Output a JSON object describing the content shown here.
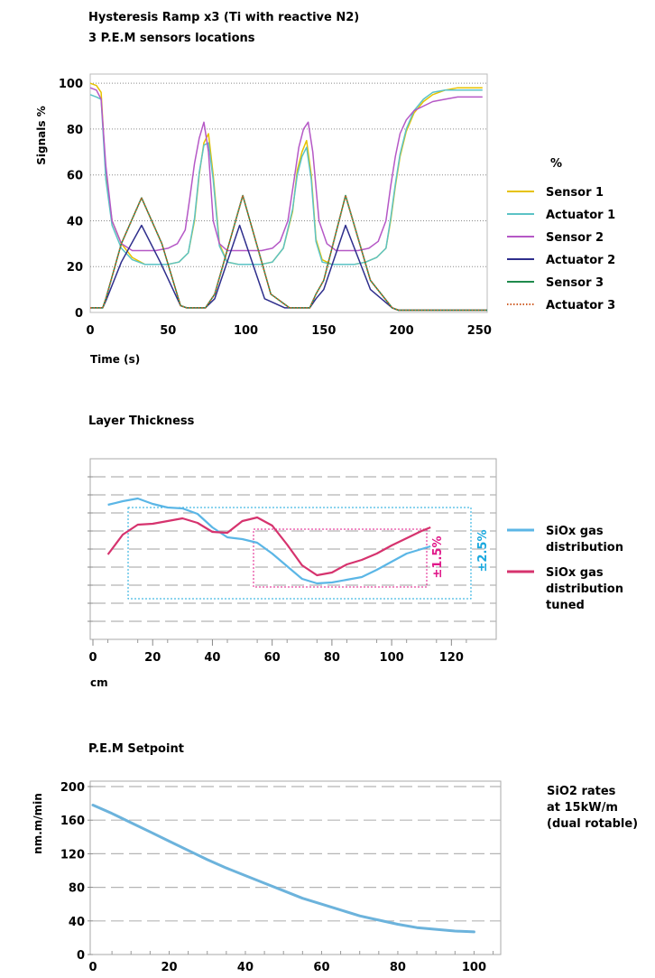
{
  "colors": {
    "sensor1": "#e6c200",
    "actuator1": "#5bc3c6",
    "sensor2": "#b558c6",
    "actuator2": "#2e2e8c",
    "sensor3": "#1f8a4c",
    "actuator3": "#d0622b",
    "siox": "#5bb6e6",
    "siox_tuned": "#d6336e",
    "dim_pink": "#e0198a",
    "dim_cyan": "#1aa8de",
    "grid": "#9a9a9a",
    "frame": "#aaaaaa",
    "setpoint": "#6cb3dc"
  },
  "chart_data": [
    {
      "type": "line",
      "title": "Hysteresis Ramp x3 (Ti with reactive N2)",
      "subtitle": "3 P.E.M sensors locations",
      "xlabel": "Time (s)",
      "ylabel": "Signals %",
      "legend_title": "%",
      "legend_position": "right",
      "grid": "horizontal dotted",
      "xlim": [
        0,
        255
      ],
      "ylim": [
        0,
        104
      ],
      "xticks": [
        "0",
        "50",
        "100",
        "150",
        "200",
        "250"
      ],
      "yticks": [
        "0",
        "20",
        "40",
        "60",
        "80",
        "100"
      ],
      "series": [
        {
          "name": "Sensor 1",
          "x": [
            0,
            4,
            7,
            10,
            14,
            20,
            27,
            35,
            42,
            50,
            57,
            63,
            67,
            70,
            73,
            76,
            79,
            83,
            88,
            95,
            102,
            110,
            117,
            124,
            130,
            133,
            136,
            139,
            142,
            145,
            149,
            155,
            162,
            170,
            177,
            184,
            190,
            193,
            196,
            199,
            203,
            208,
            214,
            220,
            228,
            236,
            244,
            252
          ],
          "y": [
            100,
            99,
            96,
            60,
            40,
            30,
            24,
            21,
            21,
            21,
            22,
            26,
            40,
            60,
            74,
            78,
            60,
            30,
            22,
            21,
            21,
            21,
            22,
            28,
            44,
            62,
            70,
            75,
            60,
            32,
            23,
            21,
            21,
            21,
            22,
            24,
            28,
            40,
            55,
            68,
            79,
            87,
            92,
            95,
            97,
            98,
            98,
            98
          ]
        },
        {
          "name": "Actuator 1",
          "x": [
            0,
            4,
            7,
            10,
            14,
            20,
            27,
            35,
            42,
            50,
            57,
            63,
            67,
            70,
            73,
            76,
            79,
            83,
            88,
            95,
            102,
            110,
            117,
            124,
            130,
            133,
            136,
            139,
            142,
            145,
            149,
            155,
            162,
            170,
            177,
            184,
            190,
            193,
            196,
            199,
            203,
            208,
            214,
            220,
            228,
            236,
            244,
            252
          ],
          "y": [
            95,
            94,
            93,
            58,
            38,
            28,
            23,
            21,
            21,
            21,
            22,
            26,
            41,
            61,
            73,
            74,
            58,
            29,
            22,
            21,
            21,
            21,
            22,
            28,
            45,
            60,
            68,
            72,
            58,
            31,
            22,
            21,
            21,
            21,
            22,
            24,
            28,
            41,
            56,
            69,
            80,
            88,
            93,
            96,
            97,
            97,
            97,
            97
          ]
        },
        {
          "name": "Sensor 2",
          "x": [
            0,
            4,
            7,
            10,
            14,
            20,
            27,
            35,
            42,
            50,
            56,
            61,
            64,
            67,
            70,
            73,
            76,
            79,
            83,
            88,
            95,
            102,
            110,
            117,
            122,
            127,
            131,
            134,
            137,
            140,
            143,
            147,
            152,
            158,
            165,
            172,
            179,
            185,
            190,
            193,
            196,
            199,
            203,
            208,
            214,
            220,
            228,
            236,
            244,
            252
          ],
          "y": [
            98,
            97,
            93,
            64,
            40,
            30,
            27,
            27,
            27,
            28,
            30,
            36,
            50,
            65,
            76,
            83,
            70,
            40,
            30,
            27,
            27,
            27,
            27,
            28,
            31,
            40,
            58,
            72,
            80,
            83,
            70,
            40,
            30,
            27,
            27,
            27,
            28,
            31,
            40,
            55,
            68,
            78,
            84,
            88,
            90,
            92,
            93,
            94,
            94,
            94
          ]
        },
        {
          "name": "Actuator 2",
          "x": [
            0,
            8,
            10,
            20,
            33,
            45,
            58,
            62,
            66,
            74,
            80,
            96,
            112,
            125,
            130,
            135,
            141,
            145,
            150,
            164,
            180,
            194,
            198,
            200,
            255
          ],
          "y": [
            2,
            2,
            5,
            22,
            38,
            22,
            3,
            2,
            2,
            2,
            6,
            38,
            6,
            2,
            2,
            2,
            2,
            6,
            10,
            38,
            10,
            2,
            1,
            1,
            1
          ]
        },
        {
          "name": "Sensor 3",
          "x": [
            0,
            8,
            10,
            20,
            33,
            46,
            58,
            62,
            66,
            74,
            80,
            98,
            116,
            128,
            132,
            135,
            141,
            145,
            150,
            164,
            180,
            194,
            198,
            200,
            255
          ],
          "y": [
            2,
            2,
            6,
            30,
            50,
            30,
            3,
            2,
            2,
            2,
            8,
            51,
            8,
            2,
            2,
            2,
            2,
            8,
            14,
            51,
            14,
            2,
            1,
            1,
            1
          ]
        },
        {
          "name": "Actuator 3",
          "x": [
            0,
            8,
            10,
            20,
            33,
            46,
            58,
            62,
            66,
            74,
            80,
            98,
            116,
            128,
            132,
            135,
            141,
            145,
            150,
            164,
            180,
            194,
            198,
            200,
            255
          ],
          "y": [
            2,
            2,
            6,
            30,
            50,
            30,
            3,
            2,
            2,
            2,
            8,
            51,
            8,
            2,
            2,
            2,
            2,
            8,
            14,
            51,
            14,
            2,
            1,
            1,
            1
          ]
        }
      ]
    },
    {
      "type": "line",
      "title": "Layer Thickness",
      "xlabel": "cm",
      "legend_position": "right",
      "grid": "horizontal dashed",
      "xlim": [
        0,
        135
      ],
      "ylim": [
        0,
        10
      ],
      "xticks": [
        "0",
        "20",
        "40",
        "60",
        "80",
        "100",
        "120"
      ],
      "annotations": [
        "±1.5%",
        "±2.5%"
      ],
      "series": [
        {
          "name": "SiOx gas distribution",
          "x": [
            5,
            10,
            15,
            20,
            25,
            30,
            35,
            40,
            45,
            50,
            55,
            60,
            65,
            70,
            75,
            80,
            85,
            90,
            95,
            100,
            105,
            110,
            113
          ],
          "y": [
            7.45,
            7.65,
            7.8,
            7.5,
            7.3,
            7.25,
            6.95,
            6.2,
            5.65,
            5.55,
            5.35,
            4.75,
            4.05,
            3.35,
            3.1,
            3.15,
            3.3,
            3.45,
            3.85,
            4.3,
            4.75,
            5.0,
            5.15
          ]
        },
        {
          "name": "SiOx gas distribution tuned",
          "x": [
            5,
            10,
            15,
            20,
            25,
            30,
            35,
            40,
            45,
            50,
            55,
            60,
            65,
            70,
            75,
            80,
            85,
            90,
            95,
            100,
            105,
            110,
            113
          ],
          "y": [
            4.7,
            5.8,
            6.35,
            6.4,
            6.55,
            6.7,
            6.45,
            5.95,
            5.9,
            6.55,
            6.75,
            6.3,
            5.25,
            4.1,
            3.55,
            3.7,
            4.15,
            4.4,
            4.75,
            5.2,
            5.6,
            6.0,
            6.2
          ]
        }
      ]
    },
    {
      "type": "line",
      "title": "P.E.M Setpoint",
      "ylabel": "nm.m/min",
      "legend_position": "right",
      "grid": "horizontal dashed",
      "xlim": [
        0,
        107
      ],
      "ylim": [
        0,
        200
      ],
      "xticks": [
        "0",
        "20",
        "40",
        "60",
        "80",
        "100"
      ],
      "yticks": [
        "0",
        "40",
        "80",
        "120",
        "160",
        "200"
      ],
      "series": [
        {
          "name": "SiO2 rates at 15kW/m (dual rotable)",
          "x": [
            0,
            5,
            10,
            15,
            20,
            25,
            30,
            35,
            40,
            45,
            50,
            55,
            60,
            65,
            70,
            75,
            80,
            85,
            90,
            95,
            100
          ],
          "y": [
            178,
            168,
            157,
            146,
            135,
            124,
            113,
            103,
            94,
            85,
            76,
            67,
            60,
            53,
            46,
            41,
            36,
            32,
            30,
            28,
            27
          ]
        }
      ],
      "legend": [
        "SiO2 rates",
        "at 15kW/m",
        "(dual rotable)"
      ]
    }
  ]
}
